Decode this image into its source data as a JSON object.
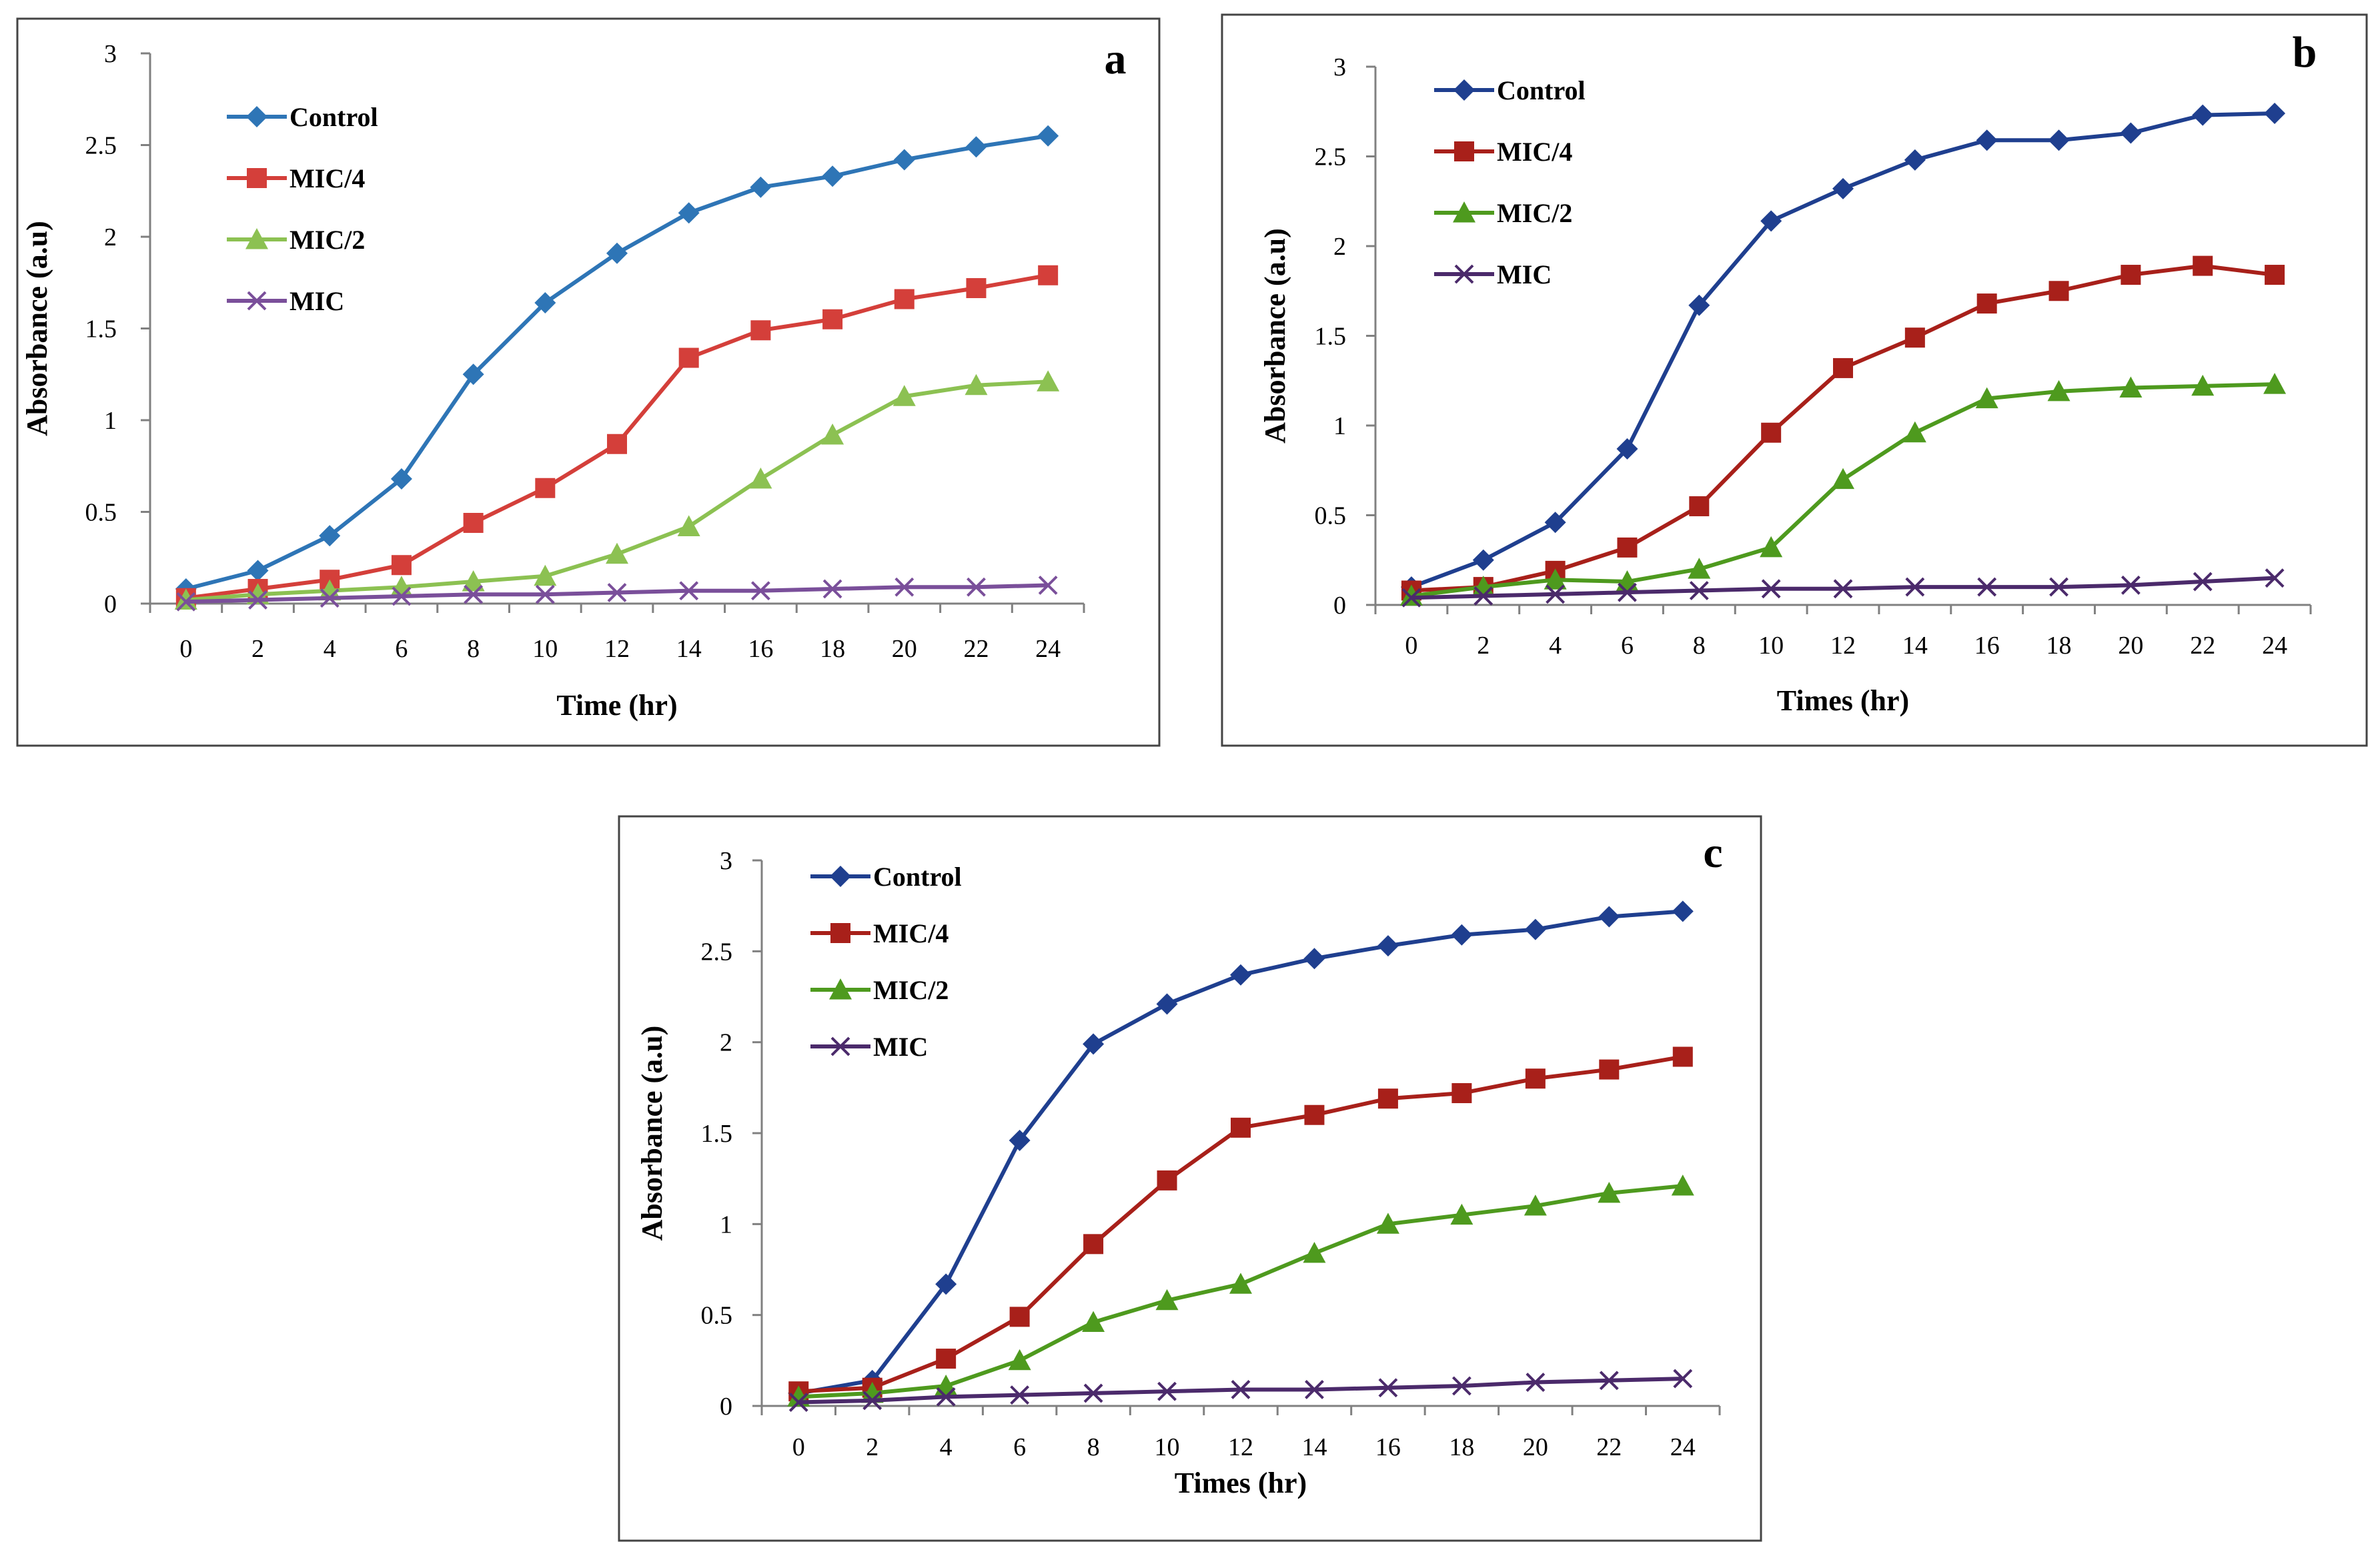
{
  "figure": {
    "panels": [
      "a",
      "b",
      "c"
    ]
  },
  "chart_data": [
    {
      "type": "line",
      "panel_label": "a",
      "title": "",
      "xlabel": "Time (hr)",
      "ylabel": "Absorbance (a.u)",
      "x": [
        0,
        2,
        4,
        6,
        8,
        10,
        12,
        14,
        16,
        18,
        20,
        22,
        24
      ],
      "xticks": [
        "0",
        "2",
        "4",
        "6",
        "8",
        "10",
        "12",
        "14",
        "16",
        "18",
        "20",
        "22",
        "24"
      ],
      "yticks": [
        "0",
        "0.5",
        "1",
        "1.5",
        "2",
        "2.5",
        "3"
      ],
      "ylim": [
        0,
        3
      ],
      "grid": false,
      "legend_position": "top-left",
      "series": [
        {
          "name": "Control",
          "color": "#2e75b6",
          "marker": "diamond",
          "values": [
            0.08,
            0.18,
            0.37,
            0.68,
            1.25,
            1.64,
            1.91,
            2.13,
            2.27,
            2.33,
            2.42,
            2.49,
            2.55
          ]
        },
        {
          "name": "MIC/4",
          "color": "#d43f3a",
          "marker": "square",
          "values": [
            0.03,
            0.08,
            0.13,
            0.21,
            0.44,
            0.63,
            0.87,
            1.34,
            1.49,
            1.55,
            1.66,
            1.72,
            1.79
          ]
        },
        {
          "name": "MIC/2",
          "color": "#8cc152",
          "marker": "triangle",
          "values": [
            0.02,
            0.05,
            0.07,
            0.09,
            0.12,
            0.15,
            0.27,
            0.42,
            0.68,
            0.92,
            1.13,
            1.19,
            1.21
          ]
        },
        {
          "name": "MIC",
          "color": "#7a4f9a",
          "marker": "x",
          "values": [
            0.01,
            0.02,
            0.03,
            0.04,
            0.05,
            0.05,
            0.06,
            0.07,
            0.07,
            0.08,
            0.09,
            0.09,
            0.1
          ]
        }
      ]
    },
    {
      "type": "line",
      "panel_label": "b",
      "title": "",
      "xlabel": "Times (hr)",
      "ylabel": "Absorbance (a.u)",
      "x": [
        0,
        2,
        4,
        6,
        8,
        10,
        12,
        14,
        16,
        18,
        20,
        22,
        24
      ],
      "xticks": [
        "0",
        "2",
        "4",
        "6",
        "8",
        "10",
        "12",
        "14",
        "16",
        "18",
        "20",
        "22",
        "24"
      ],
      "yticks": [
        "0",
        "0.5",
        "1",
        "1.5",
        "2",
        "2.5",
        "3"
      ],
      "ylim": [
        0,
        3
      ],
      "grid": false,
      "legend_position": "top-left",
      "series": [
        {
          "name": "Control",
          "color": "#1f3f8f",
          "marker": "diamond",
          "values": [
            0.1,
            0.25,
            0.46,
            0.87,
            1.67,
            2.14,
            2.32,
            2.48,
            2.59,
            2.59,
            2.63,
            2.73,
            2.74
          ]
        },
        {
          "name": "MIC/4",
          "color": "#a8201a",
          "marker": "square",
          "values": [
            0.08,
            0.1,
            0.19,
            0.32,
            0.55,
            0.96,
            1.32,
            1.49,
            1.68,
            1.75,
            1.84,
            1.89,
            1.84
          ]
        },
        {
          "name": "MIC/2",
          "color": "#4e9a1e",
          "marker": "triangle",
          "values": [
            0.05,
            0.1,
            0.14,
            0.13,
            0.2,
            0.32,
            0.7,
            0.96,
            1.15,
            1.19,
            1.21,
            1.22,
            1.23
          ]
        },
        {
          "name": "MIC",
          "color": "#4b2a6b",
          "marker": "x",
          "values": [
            0.04,
            0.05,
            0.06,
            0.07,
            0.08,
            0.09,
            0.09,
            0.1,
            0.1,
            0.1,
            0.11,
            0.13,
            0.15
          ]
        }
      ]
    },
    {
      "type": "line",
      "panel_label": "c",
      "title": "",
      "xlabel": "Times (hr)",
      "ylabel": "Absorbance (a.u)",
      "x": [
        0,
        2,
        4,
        6,
        8,
        10,
        12,
        14,
        16,
        18,
        20,
        22,
        24
      ],
      "xticks": [
        "0",
        "2",
        "4",
        "6",
        "8",
        "10",
        "12",
        "14",
        "16",
        "18",
        "20",
        "22",
        "24"
      ],
      "yticks": [
        "0",
        "0.5",
        "1",
        "1.5",
        "2",
        "2.5",
        "3"
      ],
      "ylim": [
        0,
        3
      ],
      "grid": false,
      "legend_position": "top-left",
      "series": [
        {
          "name": "Control",
          "color": "#1f3f8f",
          "marker": "diamond",
          "values": [
            0.07,
            0.14,
            0.67,
            1.46,
            1.99,
            2.21,
            2.37,
            2.46,
            2.53,
            2.59,
            2.62,
            2.69,
            2.72
          ]
        },
        {
          "name": "MIC/4",
          "color": "#a8201a",
          "marker": "square",
          "values": [
            0.08,
            0.1,
            0.26,
            0.49,
            0.89,
            1.24,
            1.53,
            1.6,
            1.69,
            1.72,
            1.8,
            1.85,
            1.92
          ]
        },
        {
          "name": "MIC/2",
          "color": "#4e9a1e",
          "marker": "triangle",
          "values": [
            0.05,
            0.07,
            0.11,
            0.25,
            0.46,
            0.58,
            0.67,
            0.84,
            1.0,
            1.05,
            1.1,
            1.17,
            1.21
          ]
        },
        {
          "name": "MIC",
          "color": "#4b2a6b",
          "marker": "x",
          "values": [
            0.02,
            0.03,
            0.05,
            0.06,
            0.07,
            0.08,
            0.09,
            0.09,
            0.1,
            0.11,
            0.13,
            0.14,
            0.15
          ]
        }
      ]
    }
  ]
}
